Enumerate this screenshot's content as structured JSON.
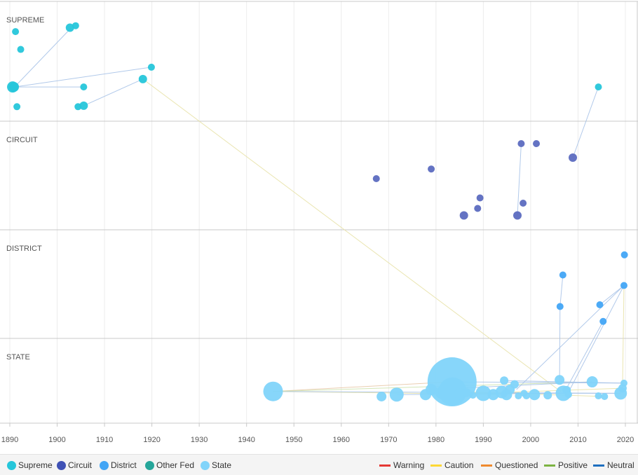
{
  "chart_data": {
    "type": "scatter",
    "title": "",
    "xlabel": "",
    "ylabel": "",
    "xlim": [
      1889,
      2021
    ],
    "x_ticks": [
      "1890",
      "1900",
      "1910",
      "1920",
      "1930",
      "1940",
      "1950",
      "1960",
      "1970",
      "1980",
      "1990",
      "2000",
      "2010",
      "2020"
    ],
    "grid": true,
    "lanes": [
      {
        "key": "supreme",
        "label": "SUPREME",
        "color": "#26c6da"
      },
      {
        "key": "circuit",
        "label": "CIRCUIT",
        "color": "#5c6bc0"
      },
      {
        "key": "district",
        "label": "DISTRICT",
        "color": "#42a5f5"
      },
      {
        "key": "state",
        "label": "STATE",
        "color": "#81d4fa"
      }
    ],
    "series": [
      {
        "name": "Supreme",
        "color": "#26c6da",
        "lane": "supreme",
        "points": [
          {
            "x": 1890.6,
            "level": 0.29,
            "size": 8
          },
          {
            "x": 1890.9,
            "level": 0.29,
            "size": 7
          },
          {
            "x": 1891.2,
            "level": 0.85,
            "size": 5
          },
          {
            "x": 1892.3,
            "level": 0.67,
            "size": 5
          },
          {
            "x": 1891.5,
            "level": 0.09,
            "size": 5
          },
          {
            "x": 1902.7,
            "level": 0.89,
            "size": 6
          },
          {
            "x": 1903.9,
            "level": 0.91,
            "size": 5
          },
          {
            "x": 1904.4,
            "level": 0.09,
            "size": 5
          },
          {
            "x": 1905.6,
            "level": 0.1,
            "size": 6
          },
          {
            "x": 1905.6,
            "level": 0.29,
            "size": 5
          },
          {
            "x": 1918.1,
            "level": 0.37,
            "size": 6
          },
          {
            "x": 1919.9,
            "level": 0.49,
            "size": 5
          },
          {
            "x": 2014.3,
            "level": 0.29,
            "size": 5
          }
        ]
      },
      {
        "name": "Circuit",
        "color": "#5c6bc0",
        "lane": "circuit",
        "points": [
          {
            "x": 1967.4,
            "level": 0.52,
            "size": 5
          },
          {
            "x": 1979.0,
            "level": 0.63,
            "size": 5
          },
          {
            "x": 1985.9,
            "level": 0.1,
            "size": 6
          },
          {
            "x": 1988.8,
            "level": 0.18,
            "size": 5
          },
          {
            "x": 1989.3,
            "level": 0.3,
            "size": 5
          },
          {
            "x": 1997.2,
            "level": 0.1,
            "size": 6
          },
          {
            "x": 1998.0,
            "level": 0.92,
            "size": 5
          },
          {
            "x": 1998.4,
            "level": 0.24,
            "size": 5
          },
          {
            "x": 2001.2,
            "level": 0.92,
            "size": 5
          },
          {
            "x": 2008.9,
            "level": 0.76,
            "size": 6
          }
        ]
      },
      {
        "name": "District",
        "color": "#42a5f5",
        "lane": "district",
        "points": [
          {
            "x": 2006.2,
            "level": 0.3,
            "size": 5
          },
          {
            "x": 2006.8,
            "level": 0.66,
            "size": 5
          },
          {
            "x": 2014.6,
            "level": 0.32,
            "size": 5
          },
          {
            "x": 2015.3,
            "level": 0.13,
            "size": 5
          },
          {
            "x": 2019.8,
            "level": 0.89,
            "size": 5
          },
          {
            "x": 2019.7,
            "level": 0.54,
            "size": 5
          }
        ]
      },
      {
        "name": "State",
        "color": "#81d4fa",
        "lane": "state",
        "points": [
          {
            "x": 1945.6,
            "level": 0.41,
            "size": 14
          },
          {
            "x": 1968.5,
            "level": 0.33,
            "size": 7
          },
          {
            "x": 1971.7,
            "level": 0.36,
            "size": 10
          },
          {
            "x": 1977.8,
            "level": 0.36,
            "size": 8
          },
          {
            "x": 1979.0,
            "level": 0.44,
            "size": 8
          },
          {
            "x": 1981.2,
            "level": 0.39,
            "size": 9
          },
          {
            "x": 1983.4,
            "level": 0.56,
            "size": 35
          },
          {
            "x": 1983.5,
            "level": 0.41,
            "size": 20
          },
          {
            "x": 1985.0,
            "level": 0.37,
            "size": 8
          },
          {
            "x": 1986.5,
            "level": 0.39,
            "size": 6
          },
          {
            "x": 1987.8,
            "level": 0.35,
            "size": 5
          },
          {
            "x": 1990.0,
            "level": 0.38,
            "size": 11
          },
          {
            "x": 1992.1,
            "level": 0.36,
            "size": 8
          },
          {
            "x": 1993.9,
            "level": 0.4,
            "size": 9
          },
          {
            "x": 1994.4,
            "level": 0.58,
            "size": 6
          },
          {
            "x": 1994.9,
            "level": 0.36,
            "size": 8
          },
          {
            "x": 1995.6,
            "level": 0.44,
            "size": 7
          },
          {
            "x": 1996.6,
            "level": 0.52,
            "size": 6
          },
          {
            "x": 1997.4,
            "level": 0.34,
            "size": 5
          },
          {
            "x": 1998.6,
            "level": 0.38,
            "size": 5
          },
          {
            "x": 1999.1,
            "level": 0.34,
            "size": 5
          },
          {
            "x": 2000.8,
            "level": 0.36,
            "size": 8
          },
          {
            "x": 2003.6,
            "level": 0.35,
            "size": 6
          },
          {
            "x": 2006.1,
            "level": 0.59,
            "size": 7
          },
          {
            "x": 2006.9,
            "level": 0.38,
            "size": 11
          },
          {
            "x": 2007.6,
            "level": 0.43,
            "size": 6
          },
          {
            "x": 2008.0,
            "level": 0.36,
            "size": 5
          },
          {
            "x": 2013.0,
            "level": 0.56,
            "size": 8
          },
          {
            "x": 2014.3,
            "level": 0.34,
            "size": 5
          },
          {
            "x": 2015.6,
            "level": 0.33,
            "size": 5
          },
          {
            "x": 2019.0,
            "level": 0.38,
            "size": 9
          },
          {
            "x": 2019.4,
            "level": 0.46,
            "size": 6
          },
          {
            "x": 2019.7,
            "level": 0.54,
            "size": 5
          }
        ]
      }
    ],
    "treatment_links": [
      {
        "from": [
          "supreme",
          1891.0,
          0.29
        ],
        "to": [
          "supreme",
          1903.0,
          0.89
        ],
        "color": "#a9c3e8"
      },
      {
        "from": [
          "supreme",
          1891.0,
          0.29
        ],
        "to": [
          "supreme",
          1919.9,
          0.49
        ],
        "color": "#a9c3e8"
      },
      {
        "from": [
          "supreme",
          1891.0,
          0.29
        ],
        "to": [
          "supreme",
          1905.6,
          0.29
        ],
        "color": "#a9c3e8"
      },
      {
        "from": [
          "supreme",
          1905.6,
          0.1
        ],
        "to": [
          "supreme",
          1918.1,
          0.37
        ],
        "color": "#a9c3e8"
      },
      {
        "from": [
          "supreme",
          1918.1,
          0.37
        ],
        "to": [
          "state",
          2006.5,
          0.4
        ],
        "color": "#e8e2a8"
      },
      {
        "from": [
          "supreme",
          2014.3,
          0.29
        ],
        "to": [
          "circuit",
          2008.9,
          0.76
        ],
        "color": "#a9c3e8"
      },
      {
        "from": [
          "circuit",
          1998.0,
          0.92
        ],
        "to": [
          "circuit",
          1997.2,
          0.1
        ],
        "color": "#a9c3e8"
      },
      {
        "from": [
          "district",
          2006.8,
          0.66
        ],
        "to": [
          "district",
          2006.2,
          0.3
        ],
        "color": "#a9c3e8"
      },
      {
        "from": [
          "district",
          2019.7,
          0.54
        ],
        "to": [
          "state",
          1997.0,
          0.44
        ],
        "color": "#a9c3e8"
      },
      {
        "from": [
          "district",
          2019.7,
          0.54
        ],
        "to": [
          "state",
          2008.0,
          0.4
        ],
        "color": "#a9c3e8"
      },
      {
        "from": [
          "district",
          2019.7,
          0.54
        ],
        "to": [
          "district",
          2014.6,
          0.32
        ],
        "color": "#a9c3e8"
      },
      {
        "from": [
          "district",
          2015.3,
          0.13
        ],
        "to": [
          "state",
          2007.0,
          0.38
        ],
        "color": "#a9c3e8"
      },
      {
        "from": [
          "district",
          2006.2,
          0.3
        ],
        "to": [
          "state",
          2006.1,
          0.59
        ],
        "color": "#a9c3e8"
      },
      {
        "from": [
          "district",
          2019.7,
          0.54
        ],
        "to": [
          "state",
          2019.4,
          0.46
        ],
        "color": "#e8e2a8"
      },
      {
        "from": [
          "state",
          1945.6,
          0.41
        ],
        "to": [
          "state",
          1983.4,
          0.56
        ],
        "color": "#e8c9a8"
      },
      {
        "from": [
          "state",
          1945.6,
          0.41
        ],
        "to": [
          "state",
          1994.9,
          0.36
        ],
        "color": "#e8e2a8"
      },
      {
        "from": [
          "state",
          1945.6,
          0.41
        ],
        "to": [
          "state",
          2019.0,
          0.38
        ],
        "color": "#a9c3e8"
      },
      {
        "from": [
          "state",
          1945.6,
          0.41
        ],
        "to": [
          "state",
          2013.0,
          0.56
        ],
        "color": "#cfe3b0"
      },
      {
        "from": [
          "state",
          1971.7,
          0.36
        ],
        "to": [
          "state",
          2006.9,
          0.38
        ],
        "color": "#a9c3e8"
      },
      {
        "from": [
          "state",
          1983.4,
          0.56
        ],
        "to": [
          "state",
          2019.7,
          0.54
        ],
        "color": "#a9c3e8"
      },
      {
        "from": [
          "state",
          1983.5,
          0.41
        ],
        "to": [
          "state",
          2015.6,
          0.33
        ],
        "color": "#e8e2a8"
      },
      {
        "from": [
          "state",
          1990.0,
          0.38
        ],
        "to": [
          "state",
          2019.0,
          0.38
        ],
        "color": "#a9c3e8"
      },
      {
        "from": [
          "state",
          1979.0,
          0.44
        ],
        "to": [
          "state",
          2013.0,
          0.56
        ],
        "color": "#a9c3e8"
      },
      {
        "from": [
          "state",
          1985.0,
          0.37
        ],
        "to": [
          "state",
          2019.4,
          0.46
        ],
        "color": "#e8e2a8"
      },
      {
        "from": [
          "state",
          1994.4,
          0.58
        ],
        "to": [
          "state",
          2019.7,
          0.54
        ],
        "color": "#a9c3e8"
      }
    ]
  },
  "legend": {
    "courts": [
      {
        "label": "Supreme",
        "color": "#26c6da"
      },
      {
        "label": "Circuit",
        "color": "#3f51b5"
      },
      {
        "label": "District",
        "color": "#42a5f5"
      },
      {
        "label": "Other Fed",
        "color": "#26a69a"
      },
      {
        "label": "State",
        "color": "#81d4fa"
      }
    ],
    "treatments": [
      {
        "label": "Warning",
        "color": "#e53935"
      },
      {
        "label": "Caution",
        "color": "#fdd835"
      },
      {
        "label": "Questioned",
        "color": "#ef8a2e"
      },
      {
        "label": "Positive",
        "color": "#7cb342"
      },
      {
        "label": "Neutral",
        "color": "#1e6fbf"
      }
    ]
  }
}
